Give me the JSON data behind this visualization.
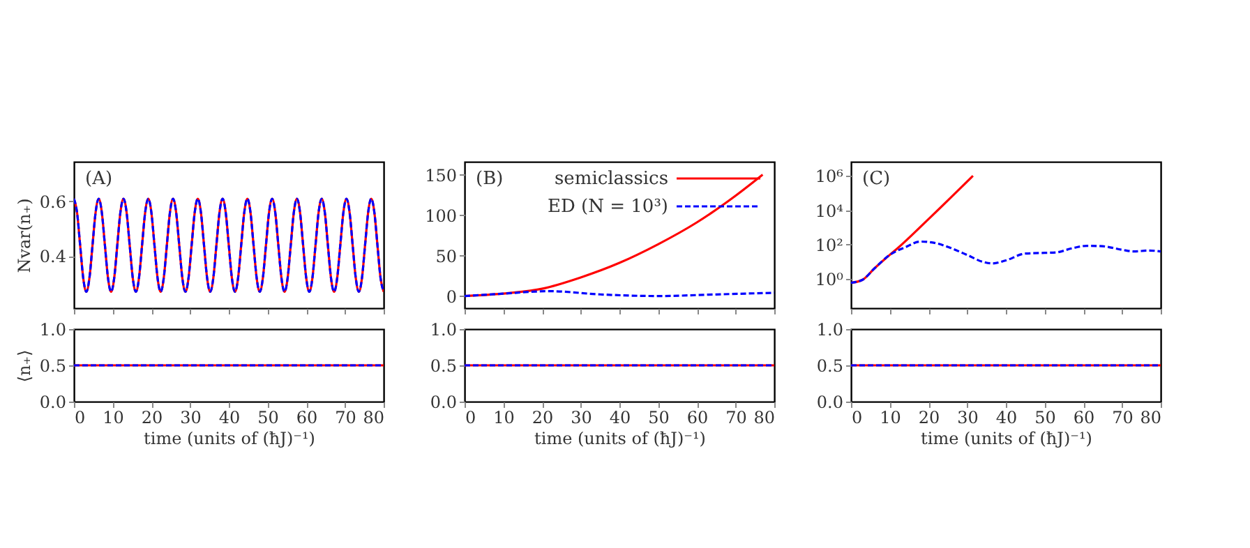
{
  "chart_data": [
    {
      "type": "line",
      "ylabel": "Nvar(n₊)",
      "annotations": [
        "(A)"
      ],
      "xlim": [
        0,
        80
      ],
      "xticks": [
        0,
        10,
        20,
        30,
        40,
        50,
        60,
        70,
        80
      ],
      "ylim": [
        0.21,
        0.745
      ],
      "yticks": [
        0.4,
        0.6
      ],
      "tick_labels": "y",
      "grid": false,
      "x": [
        0,
        0.8,
        1.6,
        2.4,
        3.2,
        4,
        4.8,
        5.6,
        6.4,
        7.2,
        8,
        8.8,
        9.6,
        10.4,
        11.2,
        12,
        12.8,
        13.6,
        14.4,
        15.2,
        16,
        16.8,
        17.6,
        18.4,
        19.2,
        20,
        20.8,
        21.6,
        22.4,
        23.2,
        24,
        24.8,
        25.6,
        26.4,
        27.2,
        28,
        28.8,
        29.6,
        30.4,
        31.2,
        32,
        32.8,
        33.6,
        34.4,
        35.2,
        36,
        36.8,
        37.6,
        38.4,
        39.2,
        40,
        40.8,
        41.6,
        42.4,
        43.2,
        44,
        44.8,
        45.6,
        46.4,
        47.2,
        48,
        48.8,
        49.6,
        50.4,
        51.2,
        52,
        52.8,
        53.6,
        54.4,
        55.2,
        56,
        56.8,
        57.6,
        58.4,
        59.2,
        60,
        60.8,
        61.6,
        62.4,
        63.2,
        64,
        64.8,
        65.6,
        66.4,
        67.2,
        68,
        68.8,
        69.6,
        70.4,
        71.2,
        72,
        72.8,
        73.6,
        74.4,
        75.2,
        76,
        76.8,
        77.6,
        78.4,
        79.2,
        80
      ],
      "series": [
        {
          "color": "#ff0000",
          "line_style": "solid",
          "values": [
            0.61,
            0.56,
            0.44,
            0.32,
            0.27,
            0.32,
            0.44,
            0.56,
            0.61,
            0.56,
            0.44,
            0.32,
            0.27,
            0.32,
            0.44,
            0.56,
            0.61,
            0.56,
            0.44,
            0.32,
            0.27,
            0.32,
            0.44,
            0.56,
            0.61,
            0.56,
            0.44,
            0.32,
            0.27,
            0.32,
            0.44,
            0.56,
            0.61,
            0.56,
            0.44,
            0.32,
            0.27,
            0.32,
            0.44,
            0.56,
            0.61,
            0.56,
            0.44,
            0.32,
            0.27,
            0.32,
            0.44,
            0.56,
            0.61,
            0.56,
            0.44,
            0.32,
            0.27,
            0.32,
            0.44,
            0.56,
            0.61,
            0.56,
            0.44,
            0.32,
            0.27,
            0.32,
            0.44,
            0.56,
            0.61,
            0.56,
            0.44,
            0.32,
            0.27,
            0.32,
            0.44,
            0.56,
            0.61,
            0.56,
            0.44,
            0.32,
            0.27,
            0.32,
            0.44,
            0.56,
            0.61,
            0.56,
            0.44,
            0.32,
            0.27,
            0.32,
            0.44,
            0.56,
            0.61,
            0.56,
            0.44,
            0.32,
            0.27,
            0.32,
            0.44,
            0.56,
            0.61,
            0.56,
            0.44,
            0.32,
            0.27
          ]
        },
        {
          "color": "#0000ff",
          "line_style": "dashed",
          "values": [
            0.61,
            0.56,
            0.44,
            0.32,
            0.27,
            0.32,
            0.44,
            0.56,
            0.61,
            0.56,
            0.44,
            0.32,
            0.27,
            0.32,
            0.44,
            0.56,
            0.61,
            0.56,
            0.44,
            0.32,
            0.27,
            0.32,
            0.44,
            0.56,
            0.61,
            0.56,
            0.44,
            0.32,
            0.27,
            0.32,
            0.44,
            0.56,
            0.61,
            0.56,
            0.44,
            0.32,
            0.27,
            0.32,
            0.44,
            0.56,
            0.61,
            0.56,
            0.44,
            0.32,
            0.27,
            0.32,
            0.44,
            0.56,
            0.61,
            0.56,
            0.44,
            0.32,
            0.27,
            0.32,
            0.44,
            0.56,
            0.61,
            0.56,
            0.44,
            0.32,
            0.27,
            0.32,
            0.44,
            0.56,
            0.61,
            0.56,
            0.44,
            0.32,
            0.27,
            0.32,
            0.44,
            0.56,
            0.61,
            0.56,
            0.44,
            0.32,
            0.27,
            0.32,
            0.44,
            0.56,
            0.61,
            0.56,
            0.44,
            0.32,
            0.27,
            0.32,
            0.44,
            0.56,
            0.61,
            0.56,
            0.44,
            0.32,
            0.27,
            0.32,
            0.44,
            0.56,
            0.61,
            0.56,
            0.44,
            0.32,
            0.27
          ]
        }
      ]
    },
    {
      "type": "line",
      "annotations": [
        "(B)"
      ],
      "xlim": [
        0,
        80
      ],
      "xticks": [
        0,
        10,
        20,
        30,
        40,
        50,
        60,
        70,
        80
      ],
      "ylim": [
        -15,
        166
      ],
      "yticks": [
        0,
        50,
        100,
        150
      ],
      "tick_labels": "y",
      "grid": false,
      "legend": "top right",
      "series": [
        {
          "name": "semiclassics",
          "color": "#ff0000",
          "line_style": "solid",
          "x": [
            0,
            10,
            20,
            30,
            40,
            50,
            60,
            70,
            77
          ],
          "values": [
            0,
            3,
            9,
            23,
            41,
            64,
            91,
            124,
            150
          ]
        },
        {
          "name": "ED (N = 10³)",
          "color": "#0000ff",
          "line_style": "dashed",
          "x": [
            0,
            10,
            22,
            35,
            50,
            65,
            80
          ],
          "values": [
            0,
            3,
            6,
            2,
            0,
            2,
            4
          ]
        }
      ]
    },
    {
      "type": "line",
      "annotations": [
        "(C)"
      ],
      "log": "y",
      "xlim": [
        0,
        80
      ],
      "xticks": [
        0,
        10,
        20,
        30,
        40,
        50,
        60,
        70,
        80
      ],
      "ylim": [
        0.02,
        6600000
      ],
      "yticks": [
        {
          "value": 1,
          "label": "10⁰"
        },
        {
          "value": 100,
          "label": "10²"
        },
        {
          "value": 10000,
          "label": "10⁴"
        },
        {
          "value": 1000000,
          "label": "10⁶"
        }
      ],
      "tick_labels": "y",
      "grid": false,
      "series": [
        {
          "color": "#ff0000",
          "line_style": "solid",
          "x": [
            0,
            3,
            6,
            10,
            12,
            20,
            31.5
          ],
          "values": [
            0.6,
            0.9,
            4,
            25,
            60,
            3000,
            1000000
          ]
        },
        {
          "color": "#0000ff",
          "line_style": "dashed",
          "x": [
            0,
            3,
            6,
            10,
            14,
            18,
            22,
            26,
            30,
            34,
            36.5,
            40,
            45,
            50,
            53,
            57,
            61,
            65,
            70,
            73,
            77,
            80
          ],
          "values": [
            0.6,
            0.9,
            4,
            25,
            70,
            150,
            120,
            60,
            25,
            10,
            8,
            12,
            30,
            33,
            35,
            60,
            85,
            80,
            50,
            40,
            45,
            40
          ]
        }
      ]
    },
    {
      "type": "line",
      "ylabel": "⟨n₊⟩",
      "xlabel": "time (units of (ħJ)⁻¹)",
      "xlim": [
        0,
        80
      ],
      "xticks": [
        0,
        10,
        20,
        30,
        40,
        50,
        60,
        70,
        80
      ],
      "ylim": [
        0,
        1
      ],
      "yticks": [
        {
          "value": 0,
          "label": "0.0"
        },
        {
          "value": 0.5,
          "label": "0.5"
        },
        {
          "value": 1,
          "label": "1.0"
        }
      ],
      "grid": false,
      "x": [
        0,
        80
      ],
      "series": [
        {
          "color": "#ff0000",
          "line_style": "solid",
          "values": [
            0.5,
            0.5
          ]
        },
        {
          "color": "#0000ff",
          "line_style": "dashed",
          "values": [
            0.5,
            0.5
          ]
        }
      ]
    },
    {
      "type": "line",
      "xlabel": "time (units of (ħJ)⁻¹)",
      "xlim": [
        0,
        80
      ],
      "xticks": [
        0,
        10,
        20,
        30,
        40,
        50,
        60,
        70,
        80
      ],
      "ylim": [
        0,
        1
      ],
      "yticks": [
        {
          "value": 0,
          "label": "0.0"
        },
        {
          "value": 0.5,
          "label": "0.5"
        },
        {
          "value": 1,
          "label": "1.0"
        }
      ],
      "grid": false,
      "x": [
        0,
        80
      ],
      "series": [
        {
          "color": "#ff0000",
          "line_style": "solid",
          "values": [
            0.5,
            0.5
          ]
        },
        {
          "color": "#0000ff",
          "line_style": "dashed",
          "values": [
            0.5,
            0.5
          ]
        }
      ]
    },
    {
      "type": "line",
      "xlabel": "time (units of (ħJ)⁻¹)",
      "xlim": [
        0,
        80
      ],
      "xticks": [
        0,
        10,
        20,
        30,
        40,
        50,
        60,
        70,
        80
      ],
      "ylim": [
        0,
        1
      ],
      "yticks": [
        {
          "value": 0,
          "label": "0.0"
        },
        {
          "value": 0.5,
          "label": "0.5"
        },
        {
          "value": 1,
          "label": "1.0"
        }
      ],
      "grid": false,
      "x": [
        0,
        80
      ],
      "series": [
        {
          "color": "#ff0000",
          "line_style": "solid",
          "values": [
            0.5,
            0.5
          ]
        },
        {
          "color": "#0000ff",
          "line_style": "dashed",
          "values": [
            0.5,
            0.5
          ]
        }
      ]
    }
  ]
}
